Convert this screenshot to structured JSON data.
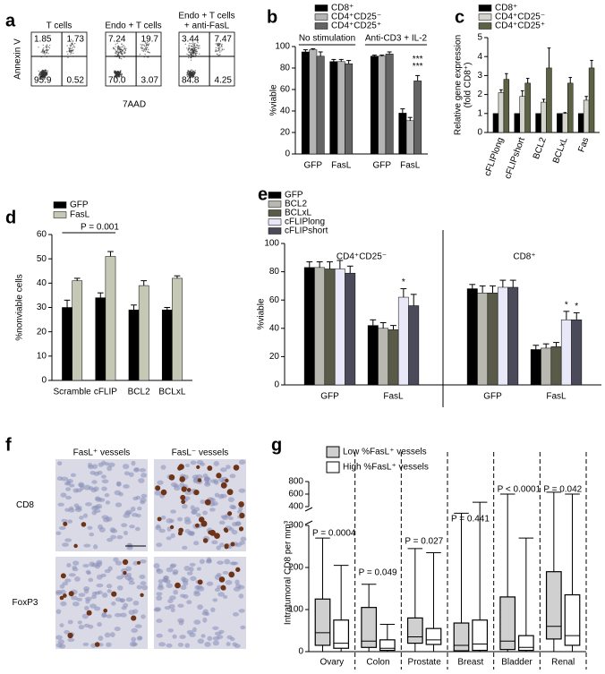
{
  "panels": {
    "a": {
      "label": "a",
      "y_axis": "Annexin V",
      "x_axis": "7AAD",
      "plots": [
        {
          "title": [
            "T cells"
          ],
          "ul": "1.85",
          "ur": "1.73",
          "ll": "95.9",
          "lr": "0.52"
        },
        {
          "title": [
            "Endo + T cells"
          ],
          "ul": "7.24",
          "ur": "19.7",
          "ll": "70.0",
          "lr": "3.07"
        },
        {
          "title": [
            "Endo + T cells",
            "+ anti-FasL"
          ],
          "ul": "3.44",
          "ur": "7.47",
          "ll": "84.8",
          "lr": "4.25"
        }
      ]
    },
    "f": {
      "label": "f",
      "columns": [
        "FasL⁺ vessels",
        "FasL⁻ vessels"
      ],
      "rows": [
        "CD8",
        "FoxP3"
      ]
    }
  },
  "chart_data": [
    {
      "panel": "b",
      "type": "bar",
      "ylabel": [
        "%viable"
      ],
      "categories": [
        "GFP",
        "FasL",
        "GFP",
        "FasL"
      ],
      "groups": [
        "No stimulation",
        "Anti-CD3 + IL-2"
      ],
      "series": [
        {
          "name": "CD8⁺",
          "color": "#000000",
          "values": [
            95,
            86,
            91,
            38
          ],
          "errors": [
            2,
            2,
            1,
            4
          ]
        },
        {
          "name": "CD4⁺CD25⁻",
          "color": "#b4b4b4",
          "values": [
            97,
            86,
            91,
            31
          ],
          "errors": [
            1,
            2,
            1,
            3
          ]
        },
        {
          "name": "CD4⁺CD25⁺",
          "color": "#646464",
          "values": [
            91,
            84,
            93,
            68
          ],
          "errors": [
            4,
            3,
            2,
            5
          ]
        }
      ],
      "ylim": [
        0,
        100
      ],
      "yticks": [
        0,
        20,
        40,
        60,
        80,
        100
      ],
      "annotations": [
        "***",
        "***"
      ]
    },
    {
      "panel": "c",
      "type": "bar",
      "ylabel": [
        "Relative gene expression",
        "(fold CD8⁺)"
      ],
      "categories": [
        "cFLIPlong",
        "cFLIPshort",
        "BCL2",
        "BCLxL",
        "Fas"
      ],
      "series": [
        {
          "name": "CD8⁺",
          "color": "#000000",
          "values": [
            1,
            1,
            1,
            1,
            1
          ]
        },
        {
          "name": "CD4⁺CD25⁻",
          "color": "#d4d4cc",
          "values": [
            2.1,
            1.9,
            1.6,
            1.0,
            1.7
          ],
          "errors": [
            0.15,
            0.3,
            0.15,
            0.05,
            0.2
          ]
        },
        {
          "name": "CD4⁺CD25⁺",
          "color": "#5c6244",
          "values": [
            2.8,
            2.6,
            3.4,
            2.6,
            3.4
          ],
          "errors": [
            0.3,
            0.25,
            1.05,
            0.3,
            0.4
          ]
        }
      ],
      "ylim": [
        0,
        5
      ],
      "yticks": [
        0,
        1,
        2,
        3,
        4,
        5
      ]
    },
    {
      "panel": "d",
      "type": "bar",
      "ylabel": [
        "%nonviable cells"
      ],
      "categories": [
        "Scramble",
        "cFLIP",
        "BCL2",
        "BCLxL"
      ],
      "series": [
        {
          "name": "GFP",
          "color": "#000000",
          "values": [
            30,
            34,
            29,
            29
          ],
          "errors": [
            3,
            2,
            2,
            1
          ]
        },
        {
          "name": "FasL",
          "color": "#c4c8b4",
          "values": [
            41,
            51,
            39,
            42
          ],
          "errors": [
            1,
            2,
            2,
            1
          ]
        }
      ],
      "ylim": [
        0,
        60
      ],
      "yticks": [
        0,
        10,
        20,
        30,
        40,
        50,
        60
      ],
      "annotations": [
        "P = 0.001"
      ]
    },
    {
      "panel": "e",
      "type": "bar",
      "ylabel": [
        "%viable"
      ],
      "categories": [
        "GFP",
        "FasL",
        "GFP",
        "FasL"
      ],
      "groups": [
        "CD4⁺CD25⁻",
        "CD8⁺"
      ],
      "series": [
        {
          "name": "GFP",
          "color": "#000000",
          "values": [
            83,
            42,
            68,
            25
          ],
          "errors": [
            4,
            4,
            3,
            3
          ]
        },
        {
          "name": "BCL2",
          "color": "#b8b8b0",
          "values": [
            83,
            40,
            65,
            26
          ],
          "errors": [
            4,
            4,
            5,
            3
          ]
        },
        {
          "name": "BCLxL",
          "color": "#5a5a48",
          "values": [
            82,
            39,
            65,
            27
          ],
          "errors": [
            5,
            3,
            5,
            3
          ]
        },
        {
          "name": "cFLIPlong",
          "color": "#e8e8f8",
          "values": [
            82,
            62,
            69,
            46
          ],
          "errors": [
            6,
            6,
            5,
            6
          ]
        },
        {
          "name": "cFLIPshort",
          "color": "#4a4a5a",
          "values": [
            79,
            56,
            69,
            46
          ],
          "errors": [
            5,
            8,
            5,
            5
          ]
        }
      ],
      "ylim": [
        0,
        100
      ],
      "yticks": [
        0,
        20,
        40,
        60,
        80,
        100
      ],
      "annotations": [
        "*",
        "*",
        "*"
      ]
    },
    {
      "panel": "g",
      "type": "box",
      "ylabel": [
        "Intratumoral CD8 per mm³"
      ],
      "categories": [
        "Ovary",
        "Colon",
        "Prostate",
        "Breast",
        "Bladder",
        "Renal"
      ],
      "series": [
        {
          "name": "Low %FasL⁺ vessels",
          "color": "#d0d0d0",
          "min": [
            0,
            0,
            0,
            0,
            0,
            0
          ],
          "q1": [
            15,
            10,
            20,
            2,
            5,
            30
          ],
          "median": [
            45,
            25,
            35,
            15,
            25,
            60
          ],
          "q3": [
            125,
            105,
            80,
            68,
            130,
            190
          ],
          "max": [
            270,
            160,
            245,
            365,
            600,
            630
          ]
        },
        {
          "name": "High %FasL⁺ vessels",
          "color": "#ffffff",
          "min": [
            0,
            0,
            0,
            0,
            0,
            0
          ],
          "q1": [
            8,
            3,
            17,
            3,
            3,
            15
          ],
          "median": [
            20,
            8,
            28,
            18,
            10,
            38
          ],
          "q3": [
            75,
            28,
            55,
            75,
            38,
            135
          ],
          "max": [
            205,
            65,
            235,
            470,
            270,
            600
          ]
        }
      ],
      "ylim": [
        0,
        800
      ],
      "yticks": [
        0,
        100,
        200,
        300,
        400,
        600,
        800
      ],
      "y_break": [
        300,
        400
      ],
      "annotations": [
        "P = 0.0004",
        "P = 0.049",
        "P = 0.027",
        "P = 0.441",
        "P < 0.0001",
        "P = 0.042"
      ]
    }
  ]
}
